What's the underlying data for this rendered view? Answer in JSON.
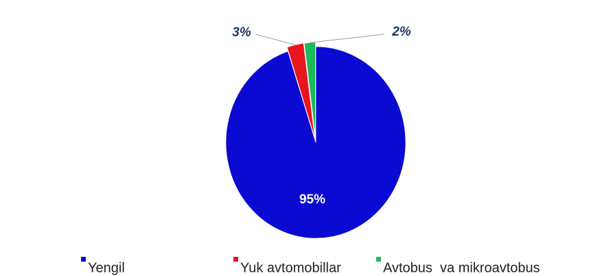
{
  "chart_data": {
    "type": "pie",
    "categories": [
      "Yengil",
      "Yuk avtomobillar",
      "Avtobus  va mikroavtobus"
    ],
    "values": [
      95,
      3,
      2
    ],
    "value_labels": [
      "95%",
      "3%",
      "2%"
    ],
    "colors": [
      "#0a0ad2",
      "#e8141e",
      "#1db85a"
    ]
  }
}
